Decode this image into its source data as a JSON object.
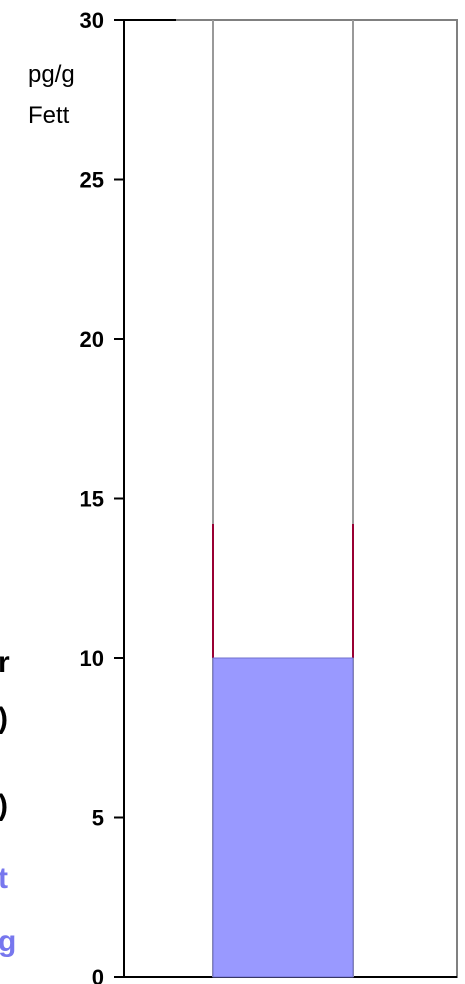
{
  "chart_data": {
    "type": "bar",
    "title": "",
    "xlabel": "",
    "ylabel": "pg/g\nFett",
    "unit_label_lines": [
      "pg/g",
      "Fett"
    ],
    "ylim": [
      0,
      30
    ],
    "yticks": [
      "0",
      "5",
      "10",
      "15",
      "20",
      "25",
      "30"
    ],
    "grid": false,
    "legend": "none",
    "categories": [
      ""
    ],
    "series": [
      {
        "values": [
          10
        ],
        "color": "#9999ff",
        "upper_line_value": 14.2,
        "upper_line_color": "#990033"
      }
    ]
  },
  "left_edge_fragments": [
    {
      "text": "r",
      "color": "#000000",
      "bold": true
    },
    {
      "text": ")",
      "color": "#000000",
      "bold": false
    },
    {
      "text": ")",
      "color": "#000000",
      "bold": false
    },
    {
      "text": "t",
      "color": "#7777ee",
      "bold": true
    },
    {
      "text": "g",
      "color": "#7777ee",
      "bold": true
    }
  ]
}
